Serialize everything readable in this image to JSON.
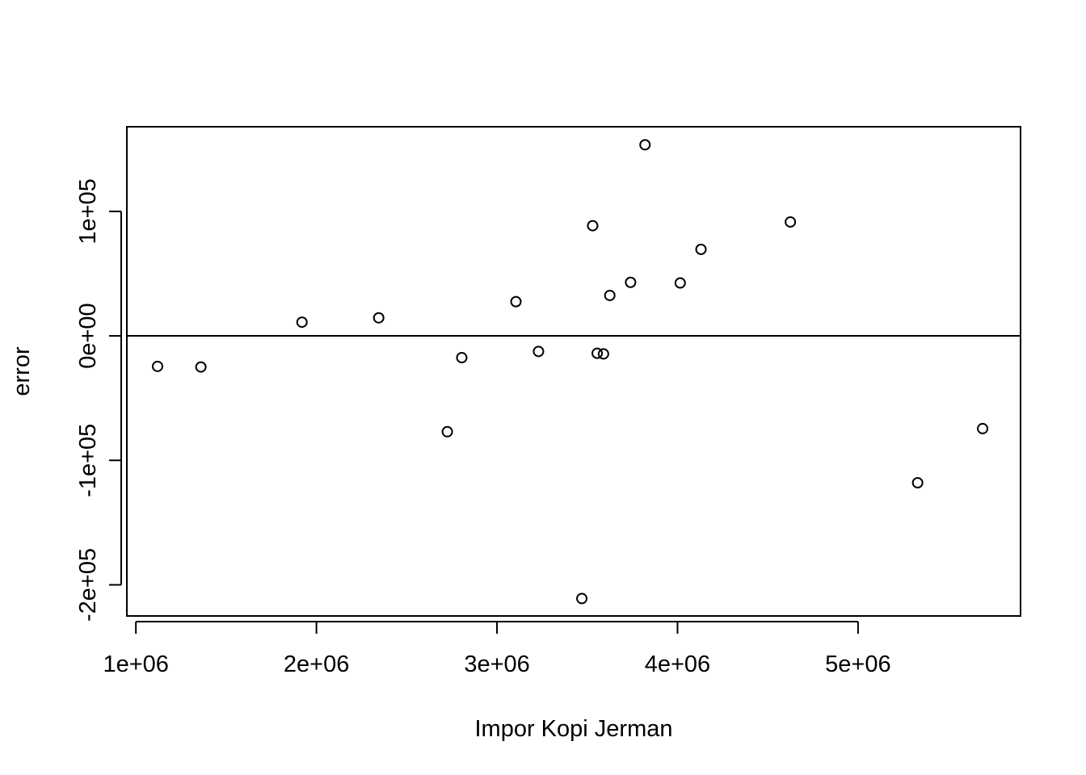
{
  "chart_data": {
    "type": "scatter",
    "title": "",
    "xlabel": "Impor Kopi Jerman",
    "ylabel": "error",
    "xlim": [
      950000,
      5900000
    ],
    "ylim": [
      -225000,
      168000
    ],
    "x_ticks": [
      {
        "value": 1000000,
        "label": "1e+06"
      },
      {
        "value": 2000000,
        "label": "2e+06"
      },
      {
        "value": 3000000,
        "label": "3e+06"
      },
      {
        "value": 4000000,
        "label": "4e+06"
      },
      {
        "value": 5000000,
        "label": "5e+06"
      }
    ],
    "y_ticks": [
      {
        "value": -200000,
        "label": "-2e+05"
      },
      {
        "value": -100000,
        "label": "-1e+05"
      },
      {
        "value": 0,
        "label": "0e+00"
      },
      {
        "value": 100000,
        "label": "1e+05"
      }
    ],
    "reference_line_y": 0,
    "grid": false,
    "points": [
      {
        "x": 1120000,
        "y": -24500
      },
      {
        "x": 1360000,
        "y": -25000
      },
      {
        "x": 1920000,
        "y": 11000
      },
      {
        "x": 2345000,
        "y": 14500
      },
      {
        "x": 2725000,
        "y": -77000
      },
      {
        "x": 2805000,
        "y": -17500
      },
      {
        "x": 3105000,
        "y": 27500
      },
      {
        "x": 3230000,
        "y": -12500
      },
      {
        "x": 3470000,
        "y": -211000
      },
      {
        "x": 3530000,
        "y": 88500
      },
      {
        "x": 3555000,
        "y": -14000
      },
      {
        "x": 3590000,
        "y": -14500
      },
      {
        "x": 3625000,
        "y": 32500
      },
      {
        "x": 3740000,
        "y": 43000
      },
      {
        "x": 3820000,
        "y": 153500
      },
      {
        "x": 4015000,
        "y": 42500
      },
      {
        "x": 4130000,
        "y": 69500
      },
      {
        "x": 4625000,
        "y": 91500
      },
      {
        "x": 5330000,
        "y": -118000
      },
      {
        "x": 5690000,
        "y": -74500
      }
    ]
  }
}
